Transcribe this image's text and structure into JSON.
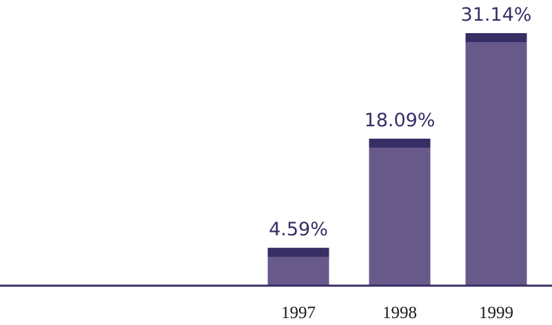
{
  "chart_data": {
    "type": "bar",
    "categories": [
      "",
      "",
      "1997",
      "1998",
      "1999"
    ],
    "values": [
      null,
      null,
      4.59,
      18.09,
      31.14
    ],
    "value_labels": [
      "",
      "",
      "4.59%",
      "18.09%",
      "31.14%"
    ],
    "title": "",
    "xlabel": "",
    "ylabel": "",
    "ylim": [
      0,
      33
    ],
    "grid": false,
    "legend": "none",
    "colors": {
      "bar": "#675a8b",
      "bar_cap": "#382e66",
      "baseline": "#382e66",
      "value_label": "#382e66",
      "tick_label": "#1a1a1a"
    }
  }
}
